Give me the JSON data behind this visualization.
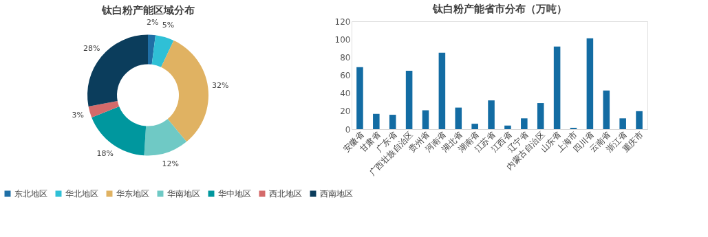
{
  "chart_data": [
    {
      "type": "donut",
      "title": "钛白粉产能区域分布",
      "categories": [
        "东北地区",
        "华北地区",
        "华东地区",
        "华南地区",
        "华中地区",
        "西北地区",
        "西南地区"
      ],
      "values": [
        2,
        5,
        32,
        12,
        18,
        3,
        28
      ],
      "colors": [
        "#1f6fa6",
        "#2fc0d6",
        "#e0b262",
        "#6fc9c5",
        "#00979e",
        "#d46a6a",
        "#0b3d5c"
      ],
      "value_labels": [
        "2%",
        "5%",
        "32%",
        "12%",
        "18%",
        "3%",
        "28%"
      ],
      "legend": "bottom"
    },
    {
      "type": "bar",
      "title": "钛白粉产能省市分布（万吨）",
      "categories": [
        "安徽省",
        "甘肃省",
        "广东省",
        "广西壮族自治区",
        "贵州省",
        "河南省",
        "湖北省",
        "湖南省",
        "江苏省",
        "江西省",
        "辽宁省",
        "内蒙古自治区",
        "山东省",
        "上海市",
        "四川省",
        "云南省",
        "浙江省",
        "重庆市"
      ],
      "values": [
        69,
        17,
        16,
        65,
        21,
        85,
        24,
        6,
        32,
        4,
        12,
        29,
        92,
        1.5,
        101,
        43,
        12,
        20
      ],
      "color": "#136ca3",
      "ylim": [
        0,
        120
      ],
      "yticks": [
        0,
        20,
        40,
        60,
        80,
        100,
        120
      ],
      "grid": false
    }
  ]
}
